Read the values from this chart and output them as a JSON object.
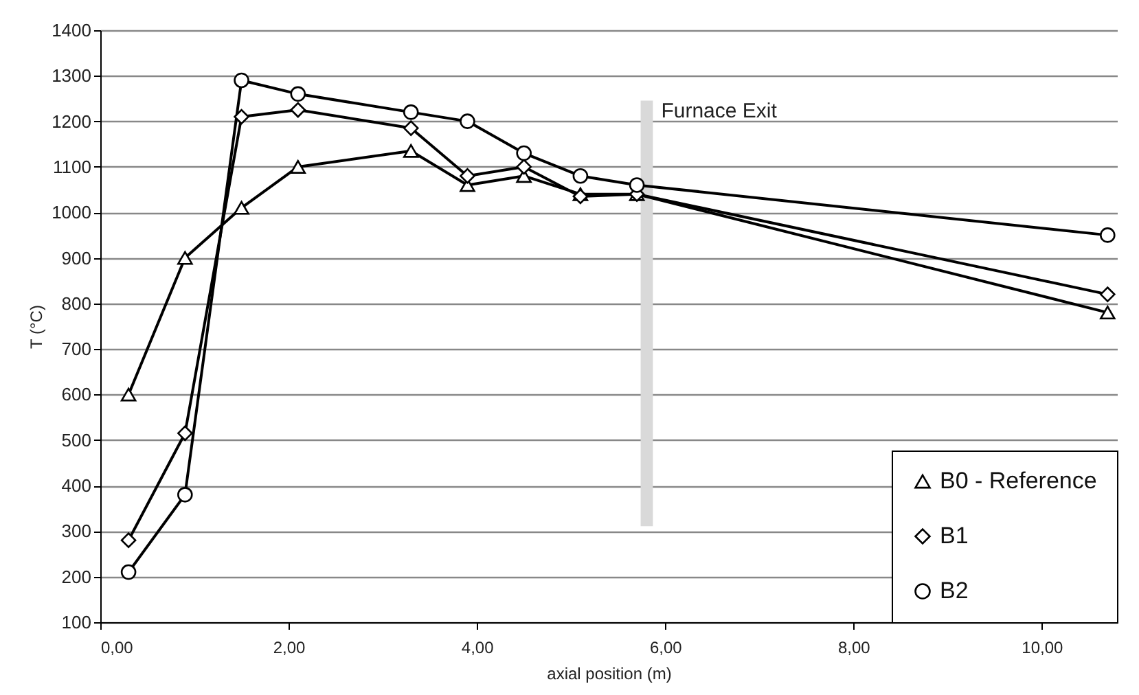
{
  "chart_data": {
    "type": "line",
    "xlabel": "axial position (m)",
    "ylabel": "T (°C)",
    "x": [
      0.3,
      0.9,
      1.5,
      2.1,
      3.3,
      3.9,
      4.5,
      5.1,
      5.7,
      10.7
    ],
    "series": [
      {
        "name": "B0 - Reference",
        "color": "#000000",
        "marker": "triangle",
        "values": [
          600,
          900,
          1010,
          1100,
          1135,
          1060,
          1080,
          1040,
          1040,
          780
        ]
      },
      {
        "name": "B1",
        "color": "#000000",
        "marker": "diamond",
        "values": [
          280,
          515,
          1210,
          1225,
          1185,
          1080,
          1100,
          1035,
          1040,
          820
        ]
      },
      {
        "name": "B2",
        "color": "#000000",
        "marker": "circle",
        "values": [
          210,
          380,
          1290,
          1260,
          1220,
          1200,
          1130,
          1080,
          1060,
          950
        ]
      }
    ],
    "xlim": [
      0,
      10.8
    ],
    "xticks": [
      {
        "value": 0,
        "label": "0,00"
      },
      {
        "value": 2,
        "label": "2,00"
      },
      {
        "value": 4,
        "label": "4,00"
      },
      {
        "value": 6,
        "label": "6,00"
      },
      {
        "value": 8,
        "label": "8,00"
      },
      {
        "value": 10,
        "label": "10,00"
      }
    ],
    "ylim": [
      100,
      1400
    ],
    "yticks": [
      100,
      200,
      300,
      400,
      500,
      600,
      700,
      800,
      900,
      1000,
      1100,
      1200,
      1300,
      1400
    ],
    "bands": [
      {
        "axis": "x",
        "from": 5.74,
        "to": 5.87,
        "label": "Furnace Exit",
        "color": "#d9d9d9"
      }
    ],
    "grid": "y",
    "legend": "bottom right",
    "line_style": "solid"
  }
}
